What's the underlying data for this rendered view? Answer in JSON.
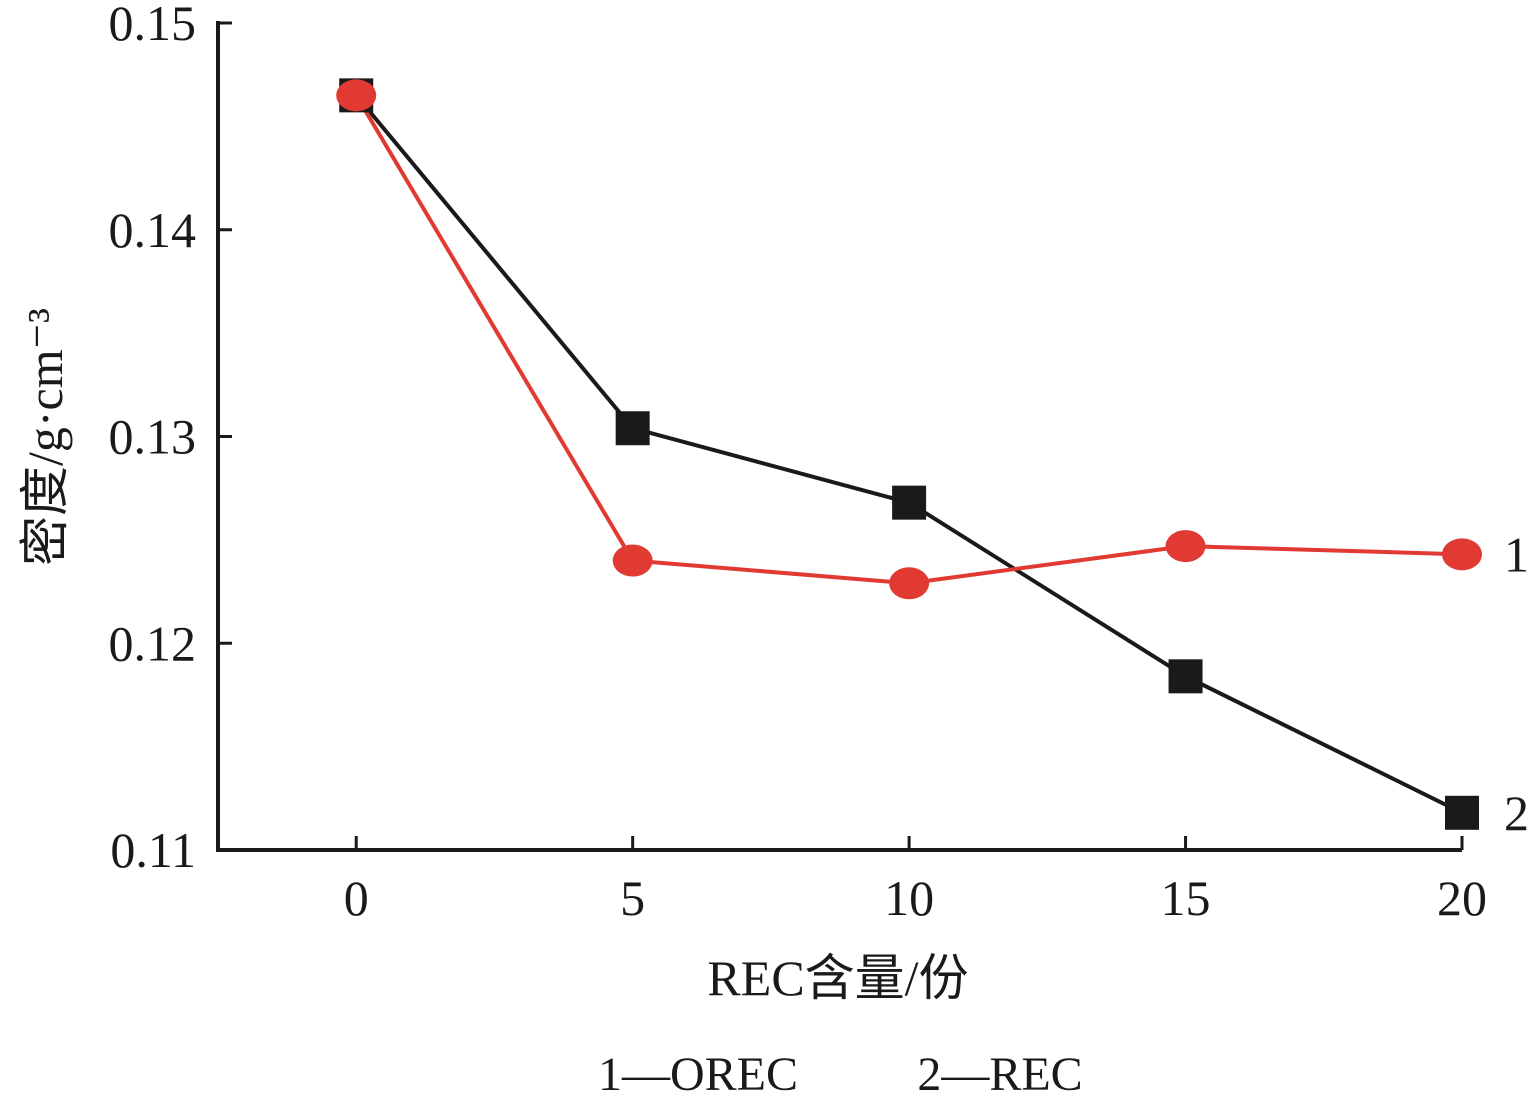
{
  "chart_data": {
    "type": "line",
    "xlabel": "REC含量/份",
    "ylabel": "密度/g·cm⁻³",
    "x": [
      0,
      5,
      10,
      15,
      20
    ],
    "xlim": [
      -2.5,
      20
    ],
    "ylim": [
      0.11,
      0.15
    ],
    "x_ticks": [
      "0",
      "5",
      "10",
      "15",
      "20"
    ],
    "y_ticks": [
      "0.11",
      "0.12",
      "0.13",
      "0.14",
      "0.15"
    ],
    "grid": false,
    "series": [
      {
        "label": "1",
        "name": "OREC",
        "marker": "circle",
        "color": "#e03a33",
        "values": [
          0.1465,
          0.124,
          0.1229,
          0.1247,
          0.1243
        ]
      },
      {
        "label": "2",
        "name": "REC",
        "marker": "square",
        "color": "#1a1a1a",
        "values": [
          0.1465,
          0.1304,
          0.1268,
          0.1184,
          0.1118
        ]
      }
    ],
    "legend": {
      "position": "bottom-center",
      "entries": [
        "1—OREC",
        "2—REC"
      ]
    }
  }
}
